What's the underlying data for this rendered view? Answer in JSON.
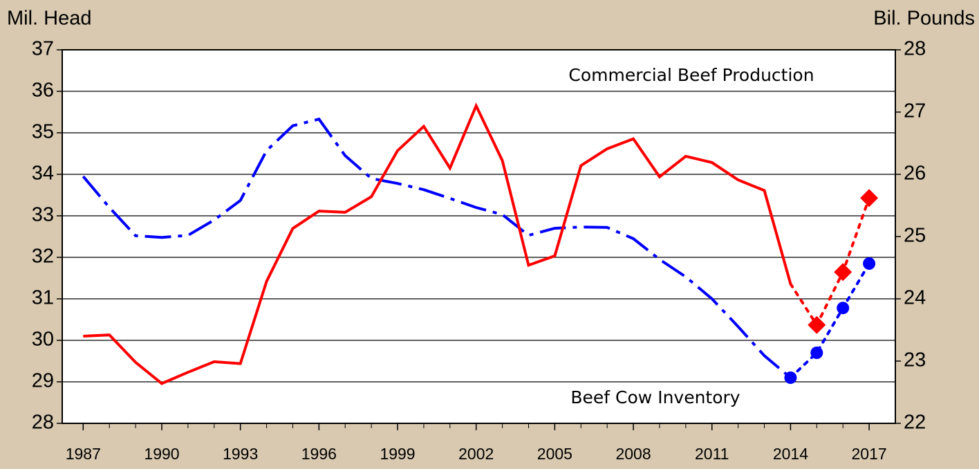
{
  "chart_data": {
    "type": "line",
    "y_label": "Mil. Head",
    "y2_label": "Bil. Pounds",
    "x": [
      1987,
      1988,
      1989,
      1990,
      1991,
      1992,
      1993,
      1994,
      1995,
      1996,
      1997,
      1998,
      1999,
      2000,
      2001,
      2002,
      2003,
      2004,
      2005,
      2006,
      2007,
      2008,
      2009,
      2010,
      2011,
      2012,
      2013,
      2014,
      2015,
      2016,
      2017
    ],
    "xlim": [
      1986.2,
      2018
    ],
    "xticks": [
      1987,
      1990,
      1993,
      1996,
      1999,
      2002,
      2005,
      2008,
      2011,
      2014,
      2017
    ],
    "ylim": [
      28,
      37
    ],
    "yticks": [
      28,
      29,
      30,
      31,
      32,
      33,
      34,
      35,
      36,
      37
    ],
    "y2lim": [
      22,
      28
    ],
    "y2ticks": [
      22,
      23,
      24,
      25,
      26,
      27,
      28
    ],
    "grid": true,
    "projection_from": 2014,
    "series": [
      {
        "name": "Beef Cow Inventory",
        "color": "#0000ff",
        "axis": "y",
        "line_style": "dashdot",
        "marker": "circle",
        "marker_from": 2014,
        "values": [
          33.95,
          33.2,
          32.52,
          32.48,
          32.53,
          32.9,
          33.37,
          34.57,
          35.17,
          35.33,
          34.45,
          33.9,
          33.78,
          33.63,
          33.42,
          33.2,
          33.03,
          32.53,
          32.7,
          32.73,
          32.72,
          32.45,
          31.95,
          31.53,
          31.0,
          30.33,
          29.63,
          29.1,
          29.7,
          30.78,
          31.85
        ]
      },
      {
        "name": "Commercial Beef Production",
        "color": "#ff0000",
        "axis": "y2",
        "line_style": "solid",
        "marker": "diamond",
        "marker_from": 2015,
        "values": [
          23.4,
          23.42,
          22.98,
          22.64,
          22.82,
          22.99,
          22.96,
          24.28,
          25.13,
          25.41,
          25.39,
          25.64,
          26.38,
          26.77,
          26.1,
          27.1,
          26.22,
          24.54,
          24.69,
          26.14,
          26.41,
          26.57,
          25.96,
          26.29,
          26.19,
          25.91,
          25.74,
          24.24,
          23.58,
          24.43,
          25.62
        ]
      }
    ]
  }
}
